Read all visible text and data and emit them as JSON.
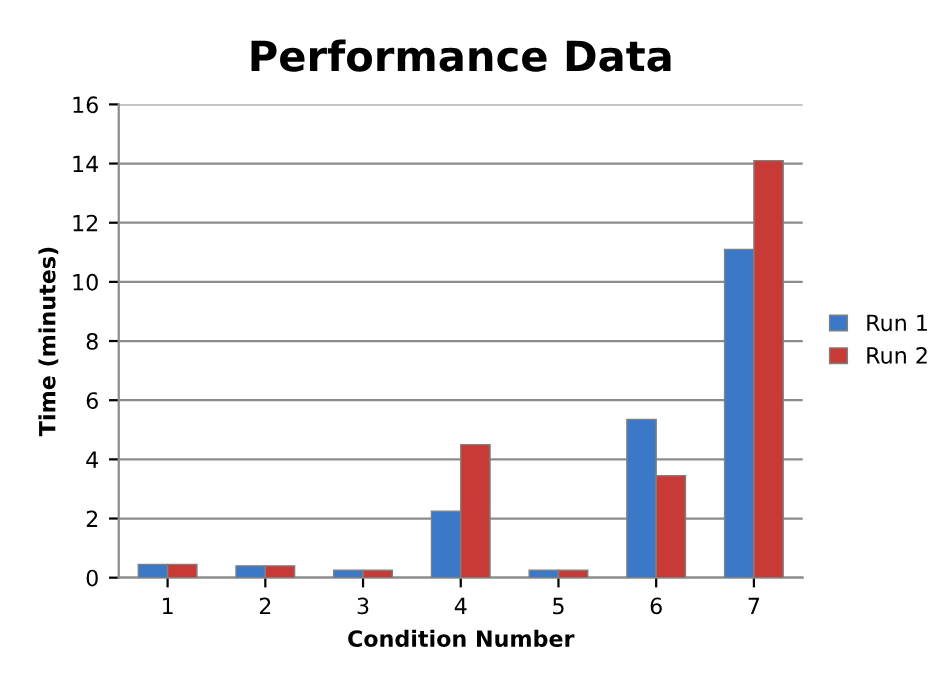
{
  "chart_data": {
    "type": "bar",
    "title": "Performance Data",
    "xlabel": "Condition Number",
    "ylabel": "Time (minutes)",
    "categories": [
      "1",
      "2",
      "3",
      "4",
      "5",
      "6",
      "7"
    ],
    "series": [
      {
        "name": "Run 1",
        "color": "#3b78c8",
        "values": [
          0.45,
          0.4,
          0.25,
          2.25,
          0.25,
          5.35,
          11.1
        ]
      },
      {
        "name": "Run 2",
        "color": "#c83a36",
        "values": [
          0.45,
          0.4,
          0.25,
          4.5,
          0.25,
          3.45,
          14.1
        ]
      }
    ],
    "ylim": [
      0,
      16
    ],
    "yticks": [
      0,
      2,
      4,
      6,
      8,
      10,
      12,
      14,
      16
    ],
    "grid": "y",
    "legend": "right"
  }
}
